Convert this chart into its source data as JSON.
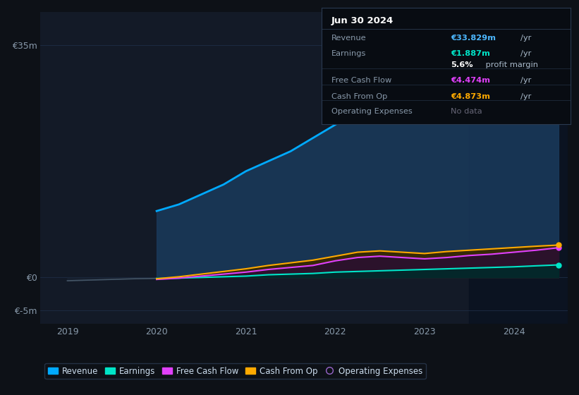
{
  "bg_color": "#0d1117",
  "chart_bg": "#131a27",
  "grid_color": "#1e2d45",
  "axis_label_color": "#8899aa",
  "years": [
    2019.0,
    2019.25,
    2019.5,
    2019.75,
    2020.0,
    2020.25,
    2020.5,
    2020.75,
    2021.0,
    2021.25,
    2021.5,
    2021.75,
    2022.0,
    2022.25,
    2022.5,
    2022.75,
    2023.0,
    2023.25,
    2023.5,
    2023.75,
    2024.0,
    2024.25,
    2024.5
  ],
  "revenue": [
    0,
    0,
    0,
    0,
    10.0,
    11.0,
    12.5,
    14.0,
    16.0,
    17.5,
    19.0,
    21.0,
    23.0,
    25.0,
    26.5,
    27.5,
    28.5,
    29.5,
    30.5,
    31.5,
    32.5,
    33.0,
    33.829
  ],
  "earnings": [
    -0.5,
    -0.4,
    -0.3,
    -0.2,
    -0.15,
    -0.1,
    0.0,
    0.1,
    0.2,
    0.4,
    0.5,
    0.6,
    0.8,
    0.9,
    1.0,
    1.1,
    1.2,
    1.3,
    1.4,
    1.5,
    1.6,
    1.75,
    1.887
  ],
  "free_cash_flow": [
    0,
    0,
    0,
    0,
    -0.3,
    -0.1,
    0.2,
    0.5,
    0.8,
    1.2,
    1.5,
    1.8,
    2.5,
    3.0,
    3.2,
    3.0,
    2.8,
    3.0,
    3.3,
    3.5,
    3.8,
    4.1,
    4.474
  ],
  "cash_from_op": [
    0,
    0,
    0,
    0,
    -0.2,
    0.1,
    0.5,
    0.9,
    1.3,
    1.8,
    2.2,
    2.6,
    3.2,
    3.8,
    4.0,
    3.8,
    3.6,
    3.9,
    4.1,
    4.3,
    4.5,
    4.7,
    4.873
  ],
  "revenue_color": "#00aaff",
  "earnings_color": "#00e5c8",
  "fcf_color": "#e040fb",
  "cfop_color": "#ffaa00",
  "opex_color": "#9966cc",
  "revenue_fill": "#1a3a5c",
  "tooltip_bg": "#080c12",
  "tooltip_border": "#2a3a50",
  "ylim_min": -7,
  "ylim_max": 40,
  "xticks": [
    2019,
    2020,
    2021,
    2022,
    2023,
    2024
  ],
  "tooltip_title": "Jun 30 2024",
  "tooltip_rows": [
    {
      "label": "Revenue",
      "value": "€33.829m",
      "unit": "/yr",
      "color": "#4db8ff",
      "bold_value": false
    },
    {
      "label": "Earnings",
      "value": "€1.887m",
      "unit": "/yr",
      "color": "#00e5c8",
      "bold_value": false
    },
    {
      "label": "",
      "value": "5.6%",
      "unit": " profit margin",
      "color": "#ffffff",
      "bold_value": true
    },
    {
      "label": "Free Cash Flow",
      "value": "€4.474m",
      "unit": "/yr",
      "color": "#e040fb",
      "bold_value": false
    },
    {
      "label": "Cash From Op",
      "value": "€4.873m",
      "unit": "/yr",
      "color": "#ffaa00",
      "bold_value": false
    },
    {
      "label": "Operating Expenses",
      "value": "No data",
      "unit": "",
      "color": "#666677",
      "bold_value": false
    }
  ]
}
